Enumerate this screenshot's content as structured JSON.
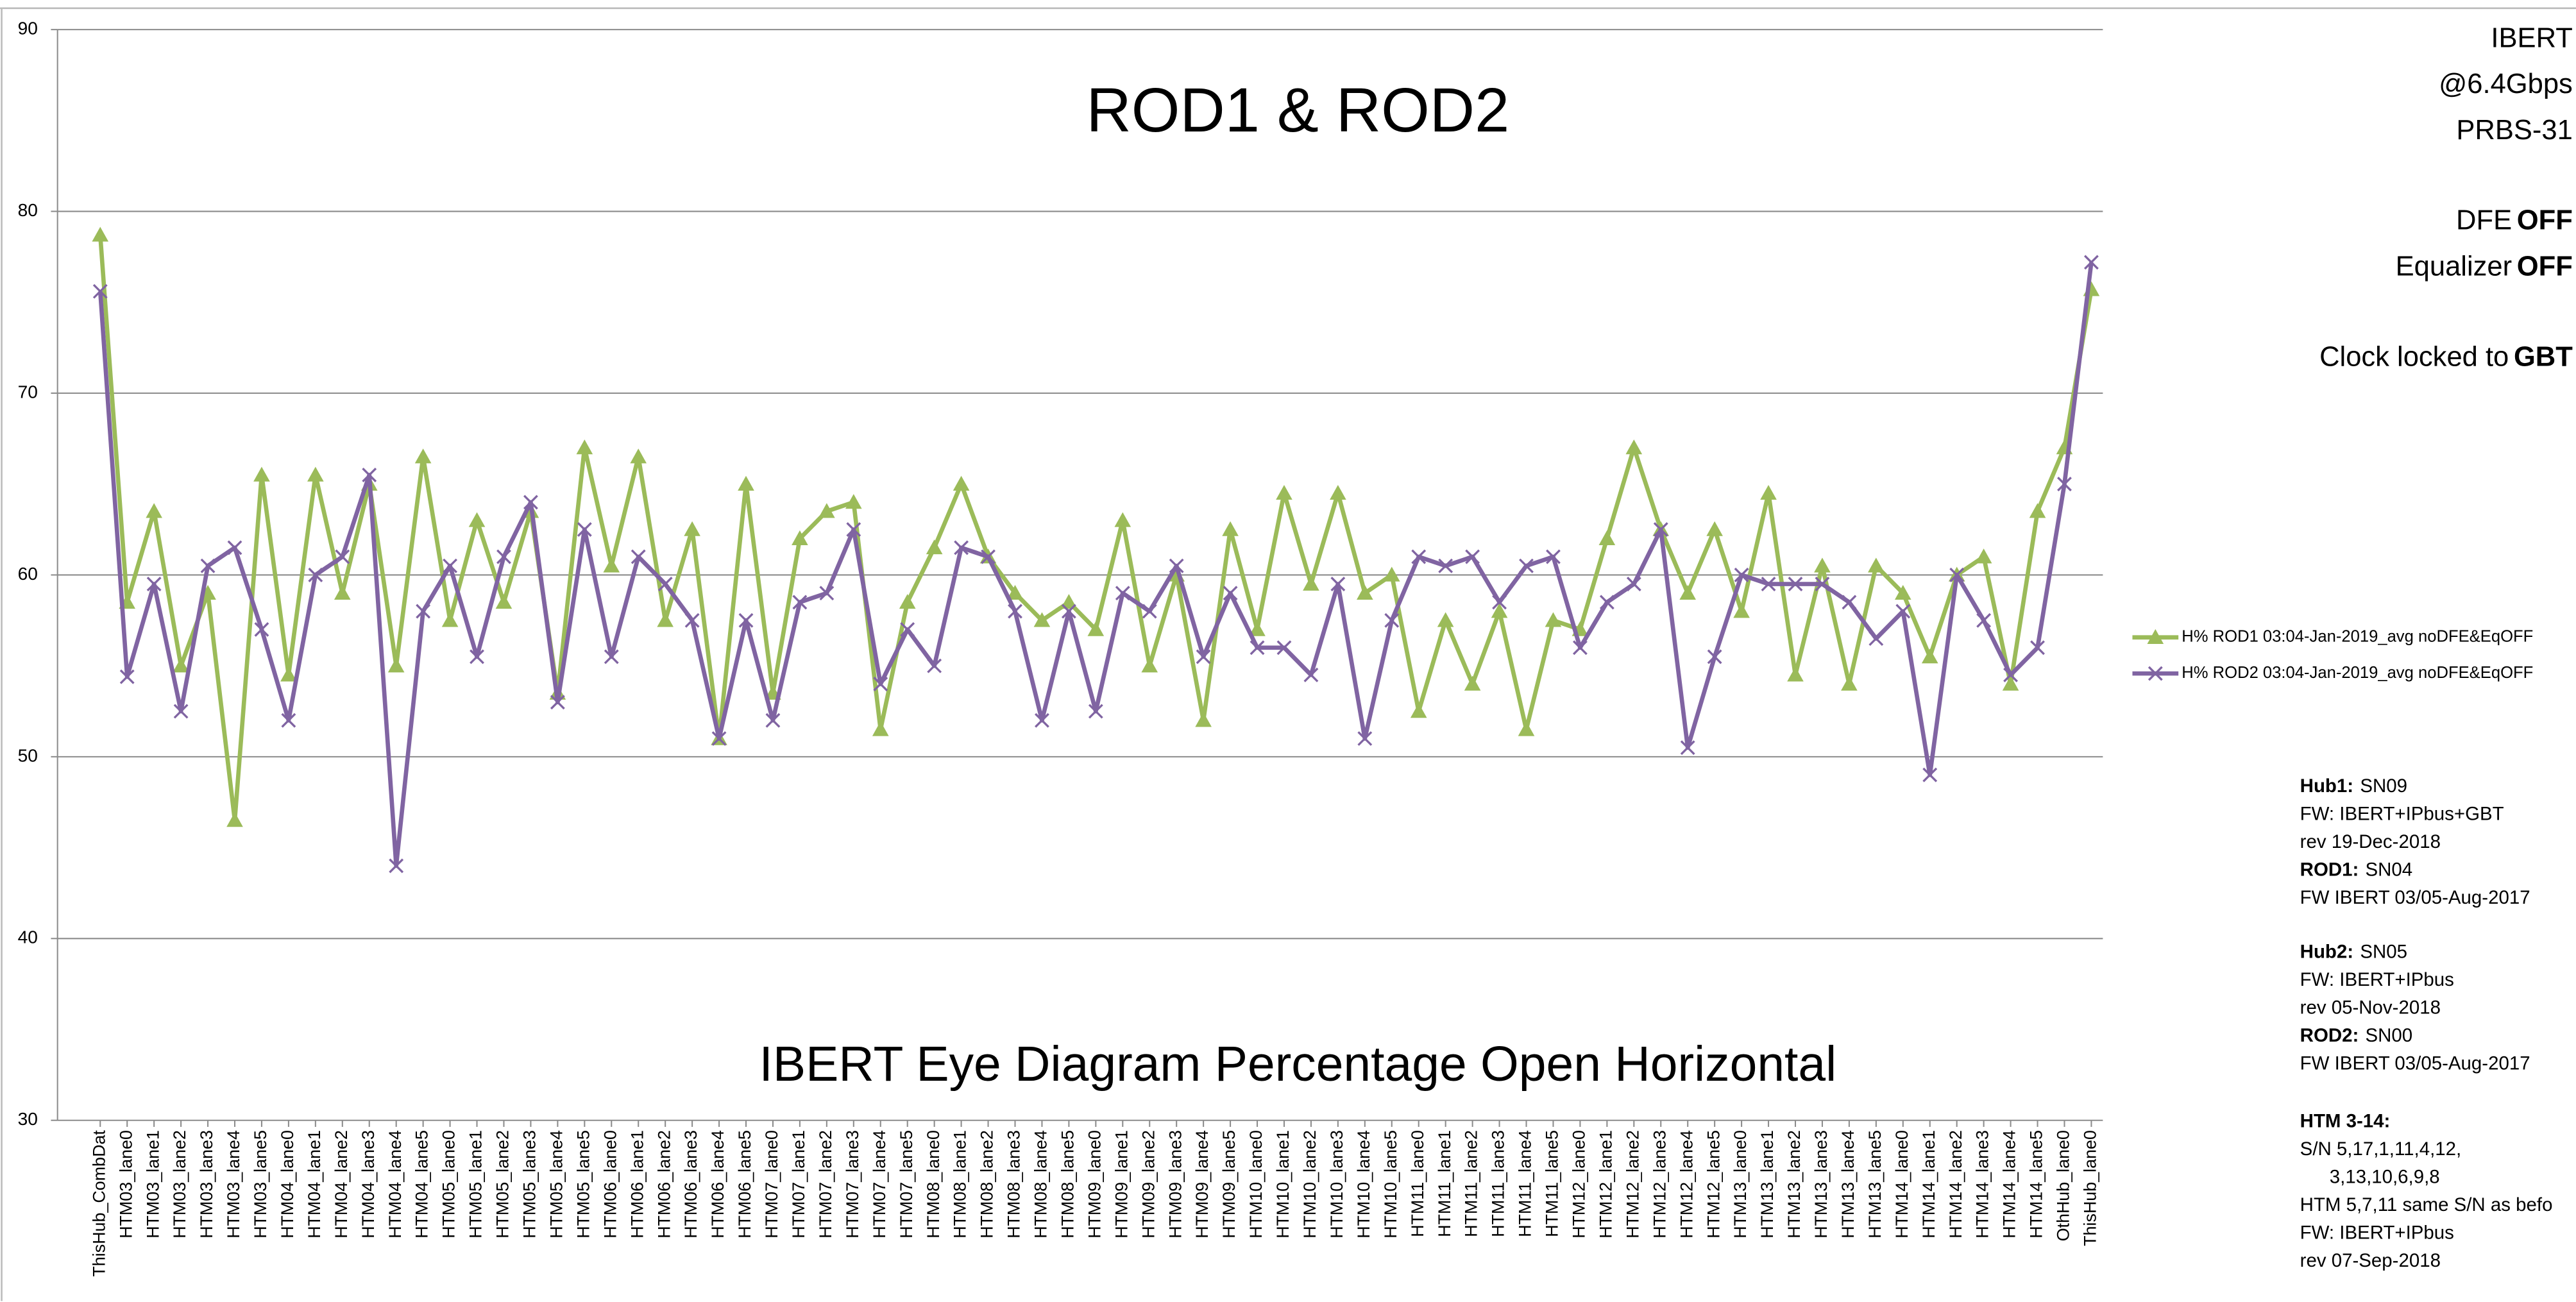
{
  "chart_data": {
    "type": "line",
    "title": "ROD1 & ROD2",
    "subtitle": "IBERT Eye Diagram Percentage Open Horizontal",
    "categories": [
      "ThisHub_CombDat",
      "HTM03_lane0",
      "HTM03_lane1",
      "HTM03_lane2",
      "HTM03_lane3",
      "HTM03_lane4",
      "HTM03_lane5",
      "HTM04_lane0",
      "HTM04_lane1",
      "HTM04_lane2",
      "HTM04_lane3",
      "HTM04_lane4",
      "HTM04_lane5",
      "HTM05_lane0",
      "HTM05_lane1",
      "HTM05_lane2",
      "HTM05_lane3",
      "HTM05_lane4",
      "HTM05_lane5",
      "HTM06_lane0",
      "HTM06_lane1",
      "HTM06_lane2",
      "HTM06_lane3",
      "HTM06_lane4",
      "HTM06_lane5",
      "HTM07_lane0",
      "HTM07_lane1",
      "HTM07_lane2",
      "HTM07_lane3",
      "HTM07_lane4",
      "HTM07_lane5",
      "HTM08_lane0",
      "HTM08_lane1",
      "HTM08_lane2",
      "HTM08_lane3",
      "HTM08_lane4",
      "HTM08_lane5",
      "HTM09_lane0",
      "HTM09_lane1",
      "HTM09_lane2",
      "HTM09_lane3",
      "HTM09_lane4",
      "HTM09_lane5",
      "HTM10_lane0",
      "HTM10_lane1",
      "HTM10_lane2",
      "HTM10_lane3",
      "HTM10_lane4",
      "HTM10_lane5",
      "HTM11_lane0",
      "HTM11_lane1",
      "HTM11_lane2",
      "HTM11_lane3",
      "HTM11_lane4",
      "HTM11_lane5",
      "HTM12_lane0",
      "HTM12_lane1",
      "HTM12_lane2",
      "HTM12_lane3",
      "HTM12_lane4",
      "HTM12_lane5",
      "HTM13_lane0",
      "HTM13_lane1",
      "HTM13_lane2",
      "HTM13_lane3",
      "HTM13_lane4",
      "HTM13_lane5",
      "HTM14_lane0",
      "HTM14_lane1",
      "HTM14_lane2",
      "HTM14_lane3",
      "HTM14_lane4",
      "HTM14_lane5",
      "OthHub_lane0",
      "ThisHub_lane0"
    ],
    "series": [
      {
        "name": "H% ROD1  03:04-Jan-2019_avg noDFE&EqOFF",
        "color": "#9bbb59",
        "marker": "triangle",
        "values": [
          78.7,
          58.5,
          63.5,
          55,
          59,
          46.5,
          65.5,
          54.5,
          65.5,
          59,
          65,
          55,
          66.5,
          57.5,
          63,
          58.5,
          63.5,
          53.5,
          67,
          60.5,
          66.5,
          57.5,
          62.5,
          51,
          65,
          53.5,
          62,
          63.5,
          64,
          51.5,
          58.5,
          61.5,
          65,
          61,
          59,
          57.5,
          58.5,
          57,
          63,
          55,
          60,
          52,
          62.5,
          57,
          64.5,
          59.5,
          64.5,
          59,
          60,
          52.5,
          57.5,
          54,
          58,
          51.5,
          57.5,
          57,
          62,
          67,
          62.5,
          59,
          62.5,
          58,
          64.5,
          54.5,
          60.5,
          54,
          60.5,
          59,
          55.5,
          60,
          61,
          54,
          63.5,
          67,
          75.7
        ]
      },
      {
        "name": "H% ROD2  03:04-Jan-2019_avg noDFE&EqOFF",
        "color": "#8064a2",
        "marker": "cross",
        "values": [
          75.6,
          54.4,
          59.5,
          52.5,
          60.5,
          61.5,
          57,
          52,
          60,
          61,
          65.5,
          44,
          58,
          60.5,
          55.5,
          61,
          64,
          53,
          62.5,
          55.5,
          61,
          59.5,
          57.5,
          51,
          57.5,
          52,
          58.5,
          59,
          62.5,
          54,
          57,
          55,
          61.5,
          61,
          58,
          52,
          58,
          52.5,
          59,
          58,
          60.5,
          55.5,
          59,
          56,
          56,
          54.5,
          59.5,
          51,
          57.5,
          61,
          60.5,
          61,
          58.5,
          60.5,
          61,
          56,
          58.5,
          59.5,
          62.5,
          50.5,
          55.5,
          60,
          59.5,
          59.5,
          59.5,
          58.5,
          56.5,
          58,
          49,
          60,
          57.5,
          54.5,
          56,
          65,
          77.2
        ]
      }
    ],
    "ylim": [
      30,
      90
    ],
    "yticks": [
      30,
      40,
      50,
      60,
      70,
      80,
      90
    ],
    "grid": true,
    "legend": "right"
  },
  "side_panel": {
    "settings": [
      {
        "text": "IBERT"
      },
      {
        "text": "@6.4Gbps"
      },
      {
        "text": "PRBS-31"
      },
      {
        "text": "DFE",
        "bold": "OFF"
      },
      {
        "text": "Equalizer",
        "bold": "OFF"
      },
      {
        "text": "Clock locked to",
        "bold": "GBT"
      }
    ],
    "notes": [
      {
        "lines": [
          {
            "bold": "Hub1:",
            "text": "SN09"
          },
          {
            "text": "FW: IBERT+IPbus+GBT"
          },
          {
            "text": "rev  19-Dec-2018"
          },
          {
            "bold": "ROD1:",
            "text": "SN04"
          },
          {
            "text": "FW IBERT  03/05-Aug-2017"
          }
        ]
      },
      {
        "lines": [
          {
            "bold": "Hub2:",
            "text": "SN05"
          },
          {
            "text": "FW: IBERT+IPbus"
          },
          {
            "text": "rev  05-Nov-2018"
          },
          {
            "bold": "ROD2:",
            "text": "SN00"
          },
          {
            "text": "FW IBERT  03/05-Aug-2017"
          }
        ]
      },
      {
        "lines": [
          {
            "bold": "HTM 3-14:"
          },
          {
            "text": "S/N  5,17,1,11,4,12,"
          },
          {
            "text": "3,13,10,6,9,8"
          },
          {
            "text": "HTM 5,7,11  same S/N as befo"
          },
          {
            "text": "FW: IBERT+IPbus"
          },
          {
            "text": "rev  07-Sep-2018"
          }
        ]
      }
    ]
  }
}
